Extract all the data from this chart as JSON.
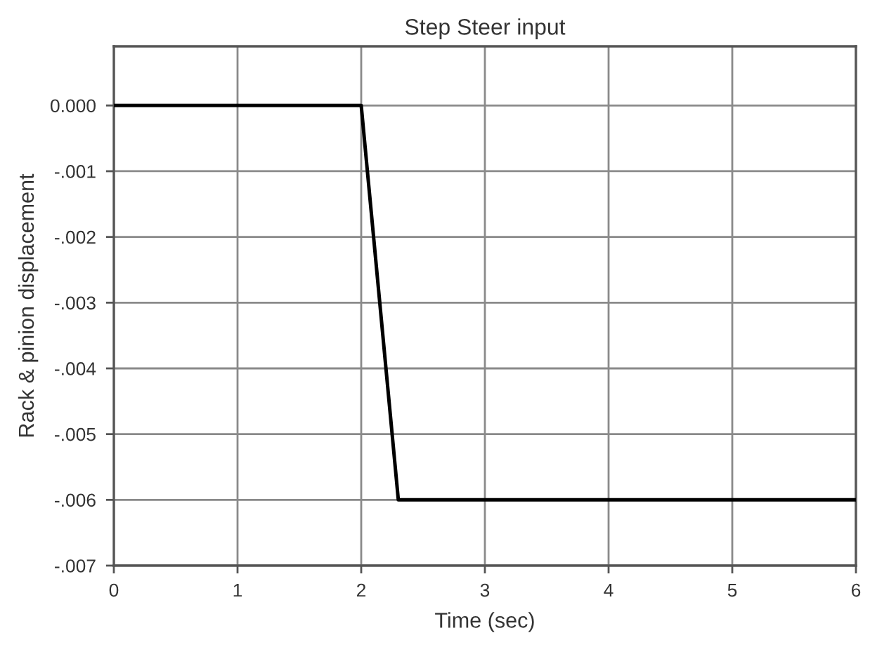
{
  "chart_data": {
    "type": "line",
    "title": "Step Steer input",
    "xlabel": "Time (sec)",
    "ylabel": "Rack & pinion displacement",
    "x": [
      0,
      2,
      2.3,
      6
    ],
    "series": [
      {
        "color": "#000000",
        "values": [
          0,
          0,
          -0.006,
          -0.006
        ]
      }
    ],
    "xlim": [
      0,
      6
    ],
    "xticks": [
      0,
      1,
      2,
      3,
      4,
      5,
      6
    ],
    "ylim": [
      -0.007,
      0.0009
    ],
    "yticks": [
      {
        "value": 0,
        "label": "0.000"
      },
      {
        "value": -0.001,
        "label": "-.001"
      },
      {
        "value": -0.002,
        "label": "-.002"
      },
      {
        "value": -0.003,
        "label": "-.003"
      },
      {
        "value": -0.004,
        "label": "-.004"
      },
      {
        "value": -0.005,
        "label": "-.005"
      },
      {
        "value": -0.006,
        "label": "-.006"
      },
      {
        "value": -0.007,
        "label": "-.007"
      }
    ],
    "grid": true
  }
}
